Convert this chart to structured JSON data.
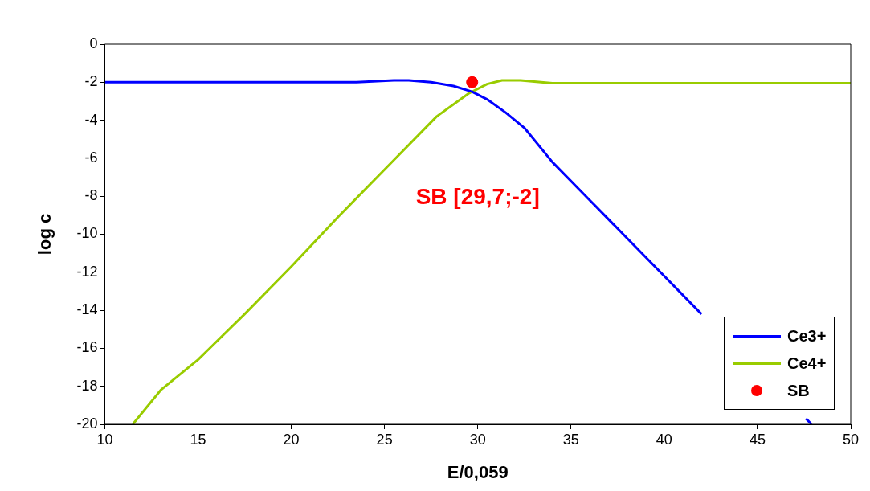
{
  "chart_data": {
    "type": "line",
    "xlabel": "E/0,059",
    "ylabel": "log c",
    "xlim": [
      10,
      50
    ],
    "xticks": [
      10,
      15,
      20,
      25,
      30,
      35,
      40,
      45,
      50
    ],
    "ylim": [
      -20,
      0
    ],
    "yticks": [
      0,
      -2,
      -4,
      -6,
      -8,
      -10,
      -12,
      -14,
      -16,
      -18,
      -20
    ],
    "grid": false,
    "legend": "bottom right",
    "marker": "none",
    "line_style": "solid",
    "series": [
      {
        "name": "Ce3+",
        "color": "#0000ff",
        "x": [
          10,
          15,
          20,
          23.5,
          25.5,
          26.3,
          27.5,
          28.7,
          29.7,
          30.5,
          31.5,
          32.5,
          34,
          36,
          38,
          40,
          42,
          44,
          46,
          47.6,
          47.9
        ],
        "values": [
          -2,
          -2,
          -2,
          -2,
          -1.9,
          -1.9,
          -2,
          -2.2,
          -2.5,
          -2.9,
          -3.6,
          -4.4,
          -6.2,
          -8.2,
          -10.2,
          -12.2,
          -14.2,
          null,
          null,
          -19.7,
          -20
        ]
      },
      {
        "name": "Ce4+",
        "color": "#99cc00",
        "x": [
          11.5,
          13,
          15,
          17.5,
          20,
          22.5,
          25.5,
          27.8,
          29.5,
          30.5,
          31.3,
          32.3,
          34,
          40,
          45,
          50
        ],
        "values": [
          -20,
          -18.2,
          -16.6,
          -14.2,
          -11.7,
          -9.1,
          -6.1,
          -3.8,
          -2.6,
          -2.1,
          -1.9,
          -1.9,
          -2.05,
          -2.05,
          -2.05,
          -2.05
        ]
      },
      {
        "name": "SB",
        "type": "scatter",
        "marker": "circle",
        "color": "#ff0000",
        "x": [
          29.7
        ],
        "values": [
          -2
        ]
      }
    ],
    "annotations": [
      "SB [29,7;-2]"
    ]
  }
}
